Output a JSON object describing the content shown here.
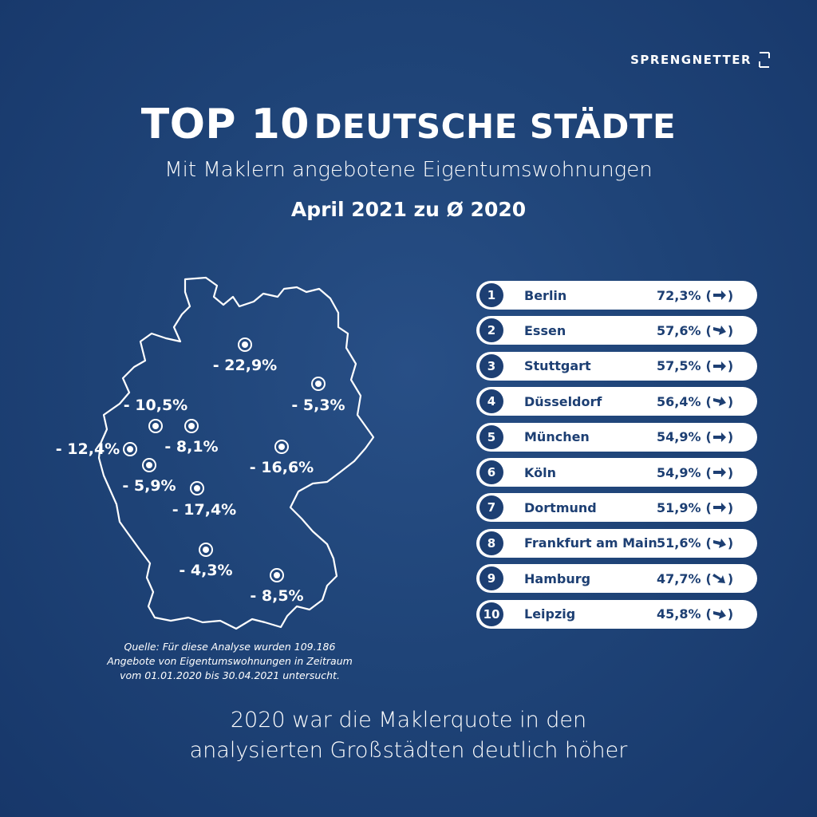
{
  "brand": {
    "name": "SPRENGNETTER"
  },
  "header": {
    "title_part1": "TOP 10",
    "title_part2": "DEUTSCHE STÄDTE",
    "subtitle": "Mit Maklern angebotene Eigentumswohnungen",
    "period": "April 2021 zu Ø 2020"
  },
  "colors": {
    "background": "#1f4478",
    "card": "#ffffff",
    "accent": "#1d3f73"
  },
  "chart_data": [
    {
      "type": "map",
      "region": "Germany",
      "markers": [
        {
          "label": "- 22,9%",
          "value": -22.9
        },
        {
          "label": "- 5,3%",
          "value": -5.3
        },
        {
          "label": "- 10,5%",
          "value": -10.5
        },
        {
          "label": "- 8,1%",
          "value": -8.1
        },
        {
          "label": "- 12,4%",
          "value": -12.4
        },
        {
          "label": "- 16,6%",
          "value": -16.6
        },
        {
          "label": "- 5,9%",
          "value": -5.9
        },
        {
          "label": "- 17,4%",
          "value": -17.4
        },
        {
          "label": "- 4,3%",
          "value": -4.3
        },
        {
          "label": "- 8,5%",
          "value": -8.5
        }
      ]
    },
    {
      "type": "table",
      "columns": [
        "rank",
        "city",
        "value",
        "trend"
      ],
      "rows": [
        {
          "rank": "1",
          "city": "Berlin",
          "value": "72,3%",
          "trend": "right"
        },
        {
          "rank": "2",
          "city": "Essen",
          "value": "57,6%",
          "trend": "down-right"
        },
        {
          "rank": "3",
          "city": "Stuttgart",
          "value": "57,5%",
          "trend": "right"
        },
        {
          "rank": "4",
          "city": "Düsseldorf",
          "value": "56,4%",
          "trend": "down-right"
        },
        {
          "rank": "5",
          "city": "München",
          "value": "54,9%",
          "trend": "right"
        },
        {
          "rank": "6",
          "city": "Köln",
          "value": "54,9%",
          "trend": "right"
        },
        {
          "rank": "7",
          "city": "Dortmund",
          "value": "51,9%",
          "trend": "right"
        },
        {
          "rank": "8",
          "city": "Frankfurt am Main",
          "value": "51,6%",
          "trend": "down-right"
        },
        {
          "rank": "9",
          "city": "Hamburg",
          "value": "47,7%",
          "trend": "down"
        },
        {
          "rank": "10",
          "city": "Leipzig",
          "value": "45,8%",
          "trend": "down-right"
        }
      ]
    }
  ],
  "source": {
    "line1": "Quelle: Für diese Analyse wurden 109.186",
    "line2": "Angebote von Eigentumswohnungen in Zeitraum",
    "line3": "vom 01.01.2020 bis 30.04.2021 untersucht."
  },
  "footer": {
    "line1": "2020 war die Maklerquote in den",
    "line2": "analysierten Großstädten deutlich höher"
  }
}
